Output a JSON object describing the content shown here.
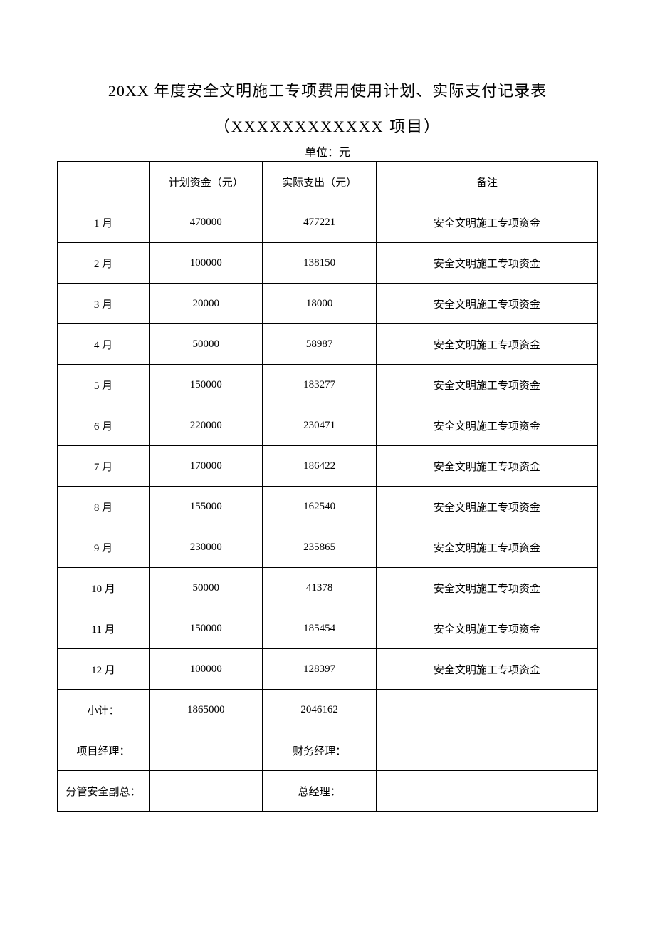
{
  "title": "20XX 年度安全文明施工专项费用使用计划、实际支付记录表",
  "subtitle": "（XXXXXXXXXXXX 项目）",
  "unit": "单位：元",
  "table": {
    "columns": [
      "",
      "计划资金（元）",
      "实际支出（元）",
      "备注"
    ],
    "rows": [
      [
        "1 月",
        "470000",
        "477221",
        "安全文明施工专项资金"
      ],
      [
        "2 月",
        "100000",
        "138150",
        "安全文明施工专项资金"
      ],
      [
        "3 月",
        "20000",
        "18000",
        "安全文明施工专项资金"
      ],
      [
        "4 月",
        "50000",
        "58987",
        "安全文明施工专项资金"
      ],
      [
        "5 月",
        "150000",
        "183277",
        "安全文明施工专项资金"
      ],
      [
        "6 月",
        "220000",
        "230471",
        "安全文明施工专项资金"
      ],
      [
        "7 月",
        "170000",
        "186422",
        "安全文明施工专项资金"
      ],
      [
        "8 月",
        "155000",
        "162540",
        "安全文明施工专项资金"
      ],
      [
        "9 月",
        "230000",
        "235865",
        "安全文明施工专项资金"
      ],
      [
        "10 月",
        "50000",
        "41378",
        "安全文明施工专项资金"
      ],
      [
        "11 月",
        "150000",
        "185454",
        "安全文明施工专项资金"
      ],
      [
        "12 月",
        "100000",
        "128397",
        "安全文明施工专项资金"
      ],
      [
        "小计：",
        "1865000",
        "2046162",
        ""
      ],
      [
        "项目经理：",
        "",
        "财务经理：",
        ""
      ],
      [
        "分管安全副总：",
        "",
        "总经理：",
        ""
      ]
    ]
  }
}
